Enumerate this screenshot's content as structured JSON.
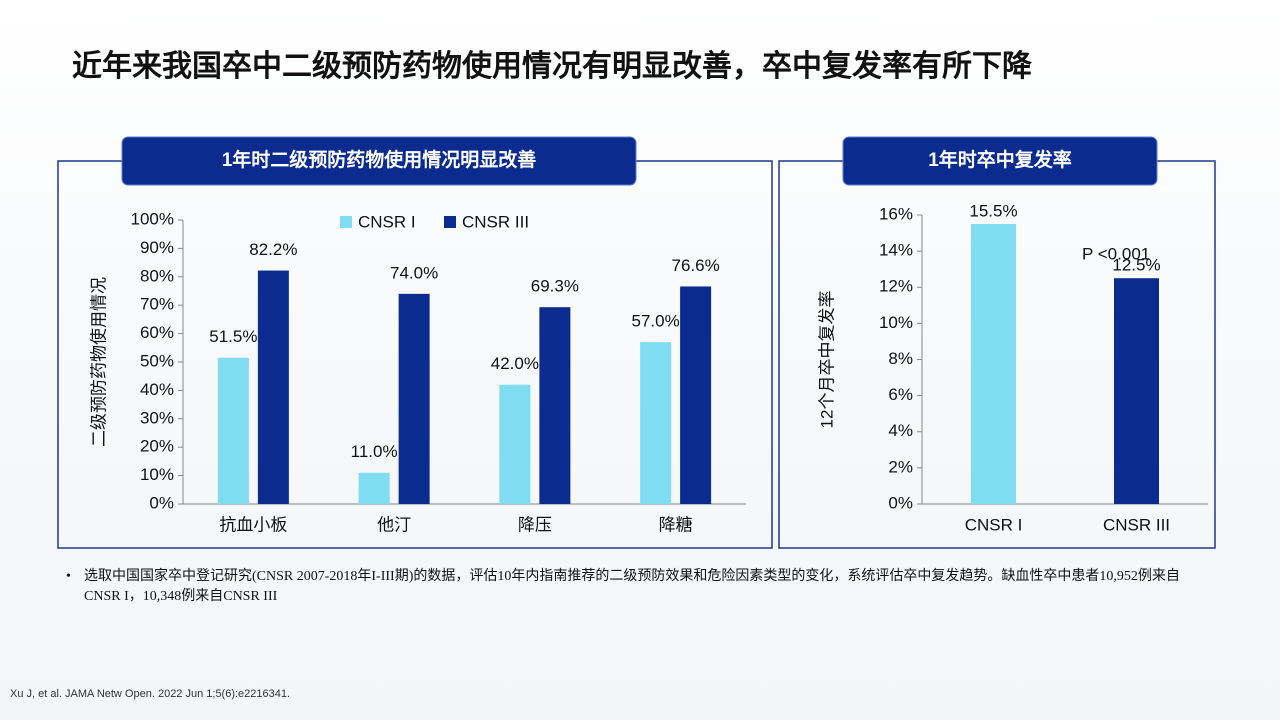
{
  "title": "近年来我国卒中二级预防药物使用情况有明显改善，卒中复发率有所下降",
  "chart_data": [
    {
      "type": "bar",
      "title": "1年时二级预防药物使用情况明显改善",
      "y_label": "二级预防药物使用情况",
      "categories": [
        "抗血小板",
        "他汀",
        "降压",
        "降糖"
      ],
      "series": [
        {
          "name": "CNSR I",
          "color": "#7fdcf1",
          "values": [
            51.5,
            11.0,
            42.0,
            57.0
          ],
          "value_labels": [
            "51.5%",
            "11.0%",
            "42.0%",
            "57.0%"
          ]
        },
        {
          "name": "CNSR III",
          "color": "#0b2b8f",
          "values": [
            82.2,
            74.0,
            69.3,
            76.6
          ],
          "value_labels": [
            "82.2%",
            "74.0%",
            "69.3%",
            "76.6%"
          ]
        }
      ],
      "ylim": [
        0,
        100
      ],
      "yticks": [
        {
          "value": 0,
          "label": "0%"
        },
        {
          "value": 10,
          "label": "10%"
        },
        {
          "value": 20,
          "label": "20%"
        },
        {
          "value": 30,
          "label": "30%"
        },
        {
          "value": 40,
          "label": "40%"
        },
        {
          "value": 50,
          "label": "50%"
        },
        {
          "value": 60,
          "label": "60%"
        },
        {
          "value": 70,
          "label": "70%"
        },
        {
          "value": 80,
          "label": "80%"
        },
        {
          "value": 90,
          "label": "90%"
        },
        {
          "value": 100,
          "label": "100%"
        }
      ],
      "legend": "top"
    },
    {
      "type": "bar",
      "title": "1年时卒中复发率",
      "y_label": "12个月卒中复发率",
      "categories": [
        "CNSR I",
        "CNSR III"
      ],
      "values": [
        15.5,
        12.5
      ],
      "value_labels": [
        "15.5%",
        "12.5%"
      ],
      "colors": [
        "#7fdcf1",
        "#0b2b8f"
      ],
      "ylim": [
        0,
        16
      ],
      "yticks": [
        {
          "value": 0,
          "label": "0%"
        },
        {
          "value": 2,
          "label": "2%"
        },
        {
          "value": 4,
          "label": "4%"
        },
        {
          "value": 6,
          "label": "6%"
        },
        {
          "value": 8,
          "label": "8%"
        },
        {
          "value": 10,
          "label": "10%"
        },
        {
          "value": 12,
          "label": "12%"
        },
        {
          "value": 14,
          "label": "14%"
        },
        {
          "value": 16,
          "label": "16%"
        }
      ],
      "annotation": "P <0.001"
    }
  ],
  "note": "选取中国国家卒中登记研究(CNSR 2007-2018年I-III期)的数据，评估10年内指南推荐的二级预防效果和危险因素类型的变化，系统评估卒中复发趋势。缺血性卒中患者10,952例来自CNSR I，10,348例来自CNSR III",
  "reference": "Xu J, et al. JAMA Netw Open. 2022 Jun 1;5(6):e2216341."
}
